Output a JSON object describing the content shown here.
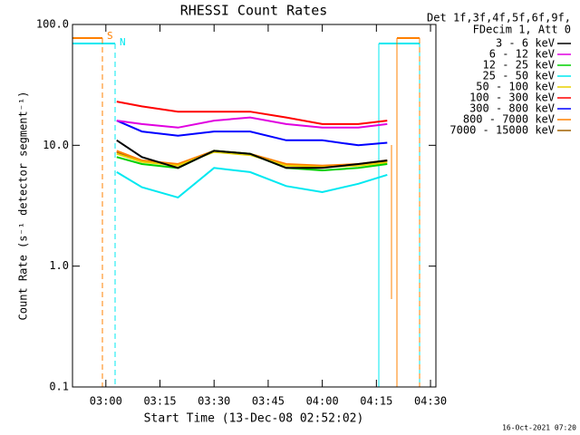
{
  "chart_data": {
    "type": "line",
    "title": "RHESSI Count Rates",
    "x_label": "Start Time (13-Dec-08 02:52:02)",
    "y_label": "Count Rate (s⁻¹ detector segment⁻¹)",
    "legend_header": [
      "Det 1f,3f,4f,5f,6f,9f,",
      "FDecim 1, Att 0"
    ],
    "annotations": [
      "S",
      "N"
    ],
    "timestamp": "16-Oct-2021 07:20",
    "log_y": true,
    "x": [
      "03:03",
      "03:10",
      "03:20",
      "03:30",
      "03:40",
      "03:50",
      "04:00",
      "04:10",
      "04:18"
    ],
    "xlim": [
      "02:50:45",
      "04:31:30"
    ],
    "xticks": [
      "03:00",
      "03:15",
      "03:30",
      "03:45",
      "04:00",
      "04:15",
      "04:30"
    ],
    "ylim": [
      0.1,
      100
    ],
    "yticks": [
      {
        "value": 0.1,
        "label": "0.1"
      },
      {
        "value": 1,
        "label": "1.0"
      },
      {
        "value": 10,
        "label": "10.0"
      },
      {
        "value": 100,
        "label": "100.0"
      }
    ],
    "series": [
      {
        "name": "3 - 6 keV",
        "color": "#000000",
        "values": [
          11,
          8,
          6.5,
          9,
          8.5,
          6.5,
          6.5,
          7,
          7.5
        ]
      },
      {
        "name": "6 - 12 keV",
        "color": "#e000e0",
        "values": [
          16,
          15,
          14,
          16,
          17,
          15,
          14,
          14,
          15
        ]
      },
      {
        "name": "12 - 25 keV",
        "color": "#00d000",
        "values": [
          8,
          7,
          6.5,
          9,
          8.5,
          6.5,
          6.2,
          6.5,
          7
        ]
      },
      {
        "name": "25 - 50 keV",
        "color": "#00e8f0",
        "values": [
          6,
          4.5,
          3.7,
          6.5,
          6,
          4.6,
          4.1,
          4.8,
          5.7
        ]
      },
      {
        "name": "50 - 100 keV",
        "color": "#e8d000",
        "values": [
          8.5,
          7.3,
          6.8,
          8.8,
          8.3,
          6.8,
          6.6,
          6.8,
          7.2
        ]
      },
      {
        "name": "100 - 300 keV",
        "color": "#ff0000",
        "values": [
          23,
          21,
          19,
          19,
          19,
          17,
          15,
          15,
          16
        ]
      },
      {
        "name": "300 - 800 keV",
        "color": "#0000ff",
        "values": [
          16,
          13,
          12,
          13,
          13,
          11,
          11,
          10,
          10.5
        ]
      },
      {
        "name": "800 - 7000 keV",
        "color": "#ff8000",
        "values": [
          9,
          7.5,
          7,
          9,
          8.5,
          7,
          6.8,
          7,
          7.5
        ]
      },
      {
        "name": "7000 - 15000 keV",
        "color": "#a06000",
        "values": [
          8.8,
          7.4,
          6.9,
          8.9,
          8.4,
          6.9,
          6.7,
          6.9,
          7.4
        ]
      }
    ]
  }
}
